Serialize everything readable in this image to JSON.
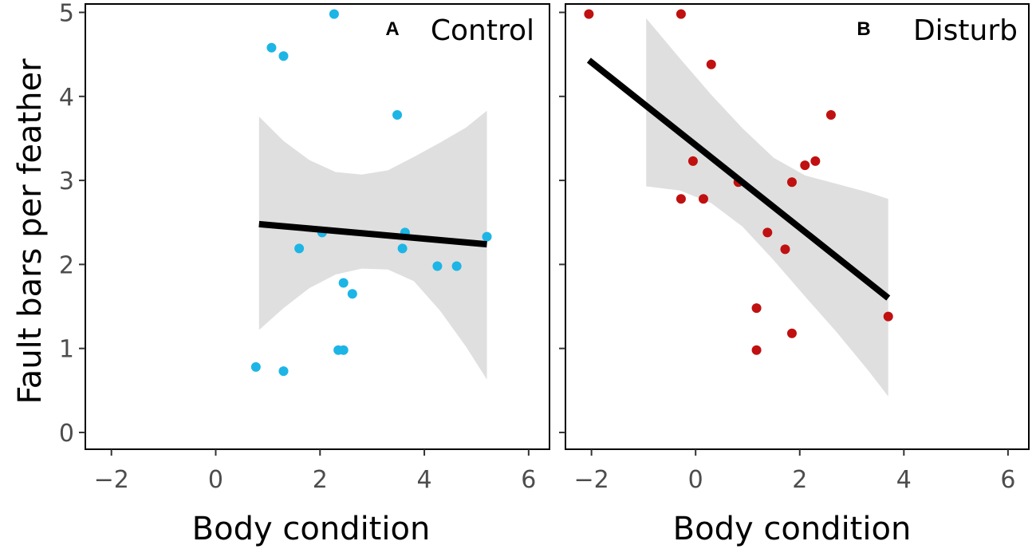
{
  "colors": {
    "control": "#1cb5e6",
    "disturb": "#c01010",
    "ribbon": "#d9d9d9",
    "fit": "#000000"
  },
  "chart_data": [
    {
      "type": "scatter",
      "panel_letter": "A",
      "title": "Control",
      "xlabel": "Body condition",
      "ylabel": "Fault bars per feather",
      "xlim": [
        -2.5,
        6.4
      ],
      "ylim": [
        -0.2,
        5.1
      ],
      "xticks": [
        -2,
        0,
        2,
        4,
        6
      ],
      "xtick_labels": [
        "−2",
        "0",
        "2",
        "4",
        "6"
      ],
      "yticks": [
        0,
        1,
        2,
        3,
        4,
        5
      ],
      "ytick_labels": [
        "0",
        "1",
        "2",
        "3",
        "4",
        "5"
      ],
      "points": [
        {
          "x": 0.77,
          "y": 0.78
        },
        {
          "x": 1.07,
          "y": 4.58
        },
        {
          "x": 1.3,
          "y": 4.48
        },
        {
          "x": 2.27,
          "y": 4.98
        },
        {
          "x": 1.3,
          "y": 0.73
        },
        {
          "x": 1.6,
          "y": 2.19
        },
        {
          "x": 2.04,
          "y": 2.38
        },
        {
          "x": 2.35,
          "y": 0.98
        },
        {
          "x": 2.45,
          "y": 0.98
        },
        {
          "x": 2.45,
          "y": 1.78
        },
        {
          "x": 2.62,
          "y": 1.65
        },
        {
          "x": 3.48,
          "y": 3.78
        },
        {
          "x": 3.58,
          "y": 2.19
        },
        {
          "x": 3.63,
          "y": 2.38
        },
        {
          "x": 4.25,
          "y": 1.98
        },
        {
          "x": 4.62,
          "y": 1.98
        },
        {
          "x": 5.2,
          "y": 2.33
        }
      ],
      "fit_line": {
        "x": [
          0.83,
          5.2
        ],
        "y": [
          2.48,
          2.24
        ]
      },
      "ribbon": {
        "x": [
          0.83,
          1.3,
          1.8,
          2.3,
          2.8,
          3.3,
          3.8,
          4.3,
          4.8,
          5.2
        ],
        "lower": [
          1.22,
          1.48,
          1.72,
          1.88,
          1.95,
          1.94,
          1.8,
          1.45,
          1.02,
          0.63
        ],
        "upper": [
          3.76,
          3.47,
          3.24,
          3.1,
          3.07,
          3.12,
          3.28,
          3.45,
          3.63,
          3.83
        ]
      }
    },
    {
      "type": "scatter",
      "panel_letter": "B",
      "title": "Disturb",
      "xlabel": "Body condition",
      "ylabel": "",
      "xlim": [
        -2.5,
        6.4
      ],
      "ylim": [
        -0.2,
        5.1
      ],
      "xticks": [
        -2,
        0,
        2,
        4,
        6
      ],
      "xtick_labels": [
        "−2",
        "0",
        "2",
        "4",
        "6"
      ],
      "yticks": [
        0,
        1,
        2,
        3,
        4,
        5
      ],
      "ytick_labels": [
        "",
        "",
        "",
        "",
        "",
        ""
      ],
      "points": [
        {
          "x": -2.05,
          "y": 4.98
        },
        {
          "x": -0.28,
          "y": 4.98
        },
        {
          "x": 0.3,
          "y": 4.38
        },
        {
          "x": -0.28,
          "y": 2.78
        },
        {
          "x": -0.05,
          "y": 3.23
        },
        {
          "x": 0.15,
          "y": 2.78
        },
        {
          "x": 0.82,
          "y": 2.98
        },
        {
          "x": 1.38,
          "y": 2.38
        },
        {
          "x": 1.17,
          "y": 1.48
        },
        {
          "x": 1.17,
          "y": 0.98
        },
        {
          "x": 1.72,
          "y": 2.18
        },
        {
          "x": 1.85,
          "y": 2.98
        },
        {
          "x": 1.85,
          "y": 1.18
        },
        {
          "x": 2.1,
          "y": 3.18
        },
        {
          "x": 2.3,
          "y": 3.23
        },
        {
          "x": 2.6,
          "y": 3.78
        },
        {
          "x": 3.7,
          "y": 1.38
        }
      ],
      "fit_line": {
        "x": [
          -2.05,
          3.7
        ],
        "y": [
          4.43,
          1.6
        ]
      },
      "ribbon": {
        "x": [
          -0.95,
          -0.3,
          0.3,
          0.9,
          1.5,
          2.1,
          2.7,
          3.3,
          3.7
        ],
        "lower": [
          2.93,
          2.88,
          2.73,
          2.45,
          2.05,
          1.62,
          1.2,
          0.75,
          0.43
        ],
        "upper": [
          4.93,
          4.45,
          4.02,
          3.62,
          3.27,
          3.06,
          2.96,
          2.86,
          2.78
        ]
      }
    }
  ]
}
